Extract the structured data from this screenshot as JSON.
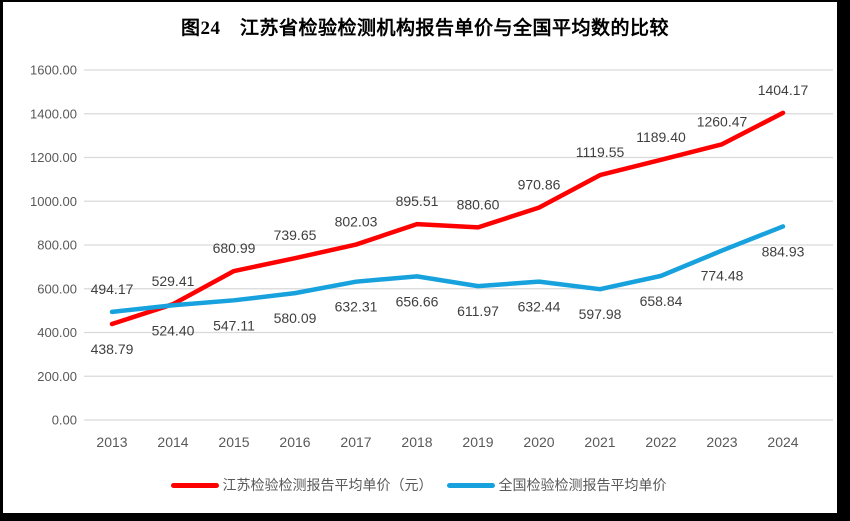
{
  "frame": {
    "background": "#ffffff",
    "border_color": "#000000"
  },
  "chart_data": {
    "type": "line",
    "title": "图24　江苏省检验检测机构报告单价与全国平均数的比较",
    "categories": [
      "2013",
      "2014",
      "2015",
      "2016",
      "2017",
      "2018",
      "2019",
      "2020",
      "2021",
      "2022",
      "2023",
      "2024"
    ],
    "series": [
      {
        "name": "江苏检验检测报告平均单价（元）",
        "color": "#ff0000",
        "values": [
          438.79,
          529.41,
          680.99,
          739.65,
          802.03,
          895.51,
          880.6,
          970.86,
          1119.55,
          1189.4,
          1260.47,
          1404.17
        ],
        "label_side": [
          "below",
          "above",
          "above",
          "above",
          "above",
          "above",
          "above",
          "above",
          "above",
          "above",
          "above",
          "above"
        ]
      },
      {
        "name": "全国检验检测报告平均单价",
        "color": "#17a2dd",
        "values": [
          494.17,
          524.4,
          547.11,
          580.09,
          632.31,
          656.66,
          611.97,
          632.44,
          597.98,
          658.84,
          774.48,
          884.93
        ],
        "label_side": [
          "above",
          "below",
          "below",
          "below",
          "below",
          "below",
          "below",
          "below",
          "below",
          "below",
          "below",
          "below"
        ]
      }
    ],
    "xlabel": "",
    "ylabel": "",
    "ylim": [
      0,
      1600
    ],
    "ytick_step": 200,
    "ytick_decimals": 2,
    "value_decimals": 2,
    "grid": true,
    "legend_position": "bottom",
    "colors": {
      "gridline": "#d9d9d9",
      "axis_text": "#595959",
      "data_label": "#3f3f3f",
      "title": "#000000"
    }
  }
}
